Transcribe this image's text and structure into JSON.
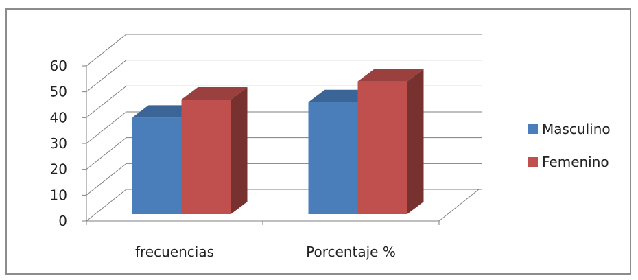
{
  "chart_data": {
    "type": "bar",
    "title": "",
    "xlabel": "",
    "ylabel": "",
    "categories": [
      "frecuencias",
      "Porcentaje %"
    ],
    "series": [
      {
        "name": "Masculino",
        "values": [
          40,
          46
        ],
        "color": "#4a7ebb"
      },
      {
        "name": "Femenino",
        "values": [
          47,
          54
        ],
        "color": "#c0504d"
      }
    ],
    "ylim": [
      0,
      60
    ],
    "yticks": [
      "0",
      "10",
      "20",
      "30",
      "40",
      "50",
      "60"
    ],
    "grid": true,
    "legend_position": "right",
    "style": "3d"
  }
}
